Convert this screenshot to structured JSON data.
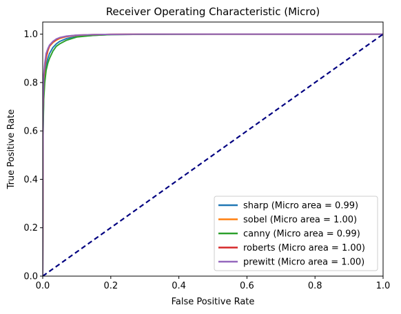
{
  "chart_data": {
    "type": "line",
    "title": "Receiver Operating Characteristic (Micro)",
    "xlabel": "False Positive Rate",
    "ylabel": "True Positive Rate",
    "xlim": [
      0.0,
      1.0
    ],
    "ylim": [
      0.0,
      1.05
    ],
    "xticks": [
      "0.0",
      "0.2",
      "0.4",
      "0.6",
      "0.8",
      "1.0"
    ],
    "yticks": [
      "0.0",
      "0.2",
      "0.4",
      "0.6",
      "0.8",
      "1.0"
    ],
    "grid": false,
    "legend_position": "lower-right",
    "series": [
      {
        "name": "sharp (Micro area = 0.99)",
        "color": "#1f77b4",
        "x": [
          0,
          0.001,
          0.003,
          0.006,
          0.01,
          0.015,
          0.02,
          0.03,
          0.04,
          0.05,
          0.07,
          0.1,
          0.15,
          0.2,
          0.3,
          0.5,
          1.0
        ],
        "y": [
          0,
          0.6,
          0.75,
          0.82,
          0.87,
          0.9,
          0.92,
          0.945,
          0.96,
          0.97,
          0.982,
          0.99,
          0.995,
          0.998,
          0.999,
          1.0,
          1.0
        ]
      },
      {
        "name": "sobel (Micro area = 1.00)",
        "color": "#ff7f0e",
        "x": [
          0,
          0.001,
          0.003,
          0.006,
          0.01,
          0.015,
          0.02,
          0.03,
          0.04,
          0.05,
          0.07,
          0.1,
          0.15,
          0.2,
          0.3,
          0.5,
          1.0
        ],
        "y": [
          0,
          0.66,
          0.8,
          0.86,
          0.9,
          0.93,
          0.95,
          0.965,
          0.975,
          0.982,
          0.99,
          0.995,
          0.998,
          0.999,
          1.0,
          1.0,
          1.0
        ]
      },
      {
        "name": "canny (Micro area = 0.99)",
        "color": "#2ca02c",
        "x": [
          0,
          0.001,
          0.003,
          0.006,
          0.01,
          0.015,
          0.02,
          0.03,
          0.04,
          0.05,
          0.07,
          0.1,
          0.15,
          0.2,
          0.3,
          0.5,
          1.0
        ],
        "y": [
          0,
          0.58,
          0.73,
          0.8,
          0.85,
          0.88,
          0.9,
          0.93,
          0.95,
          0.96,
          0.975,
          0.988,
          0.995,
          0.998,
          0.999,
          1.0,
          1.0
        ]
      },
      {
        "name": "roberts (Micro area = 1.00)",
        "color": "#d62728",
        "x": [
          0,
          0.001,
          0.003,
          0.006,
          0.01,
          0.015,
          0.02,
          0.03,
          0.04,
          0.05,
          0.07,
          0.1,
          0.15,
          0.2,
          0.3,
          0.5,
          1.0
        ],
        "y": [
          0,
          0.68,
          0.82,
          0.87,
          0.91,
          0.935,
          0.952,
          0.968,
          0.978,
          0.985,
          0.991,
          0.996,
          0.998,
          0.999,
          1.0,
          1.0,
          1.0
        ]
      },
      {
        "name": "prewitt (Micro area = 1.00)",
        "color": "#9467bd",
        "x": [
          0,
          0.001,
          0.003,
          0.006,
          0.01,
          0.015,
          0.02,
          0.03,
          0.04,
          0.05,
          0.07,
          0.1,
          0.15,
          0.2,
          0.3,
          0.5,
          1.0
        ],
        "y": [
          0,
          0.7,
          0.83,
          0.88,
          0.92,
          0.94,
          0.955,
          0.97,
          0.98,
          0.986,
          0.992,
          0.996,
          0.998,
          0.999,
          1.0,
          1.0,
          1.0
        ]
      }
    ],
    "reference_line": {
      "color": "#000080",
      "style": "dashed",
      "x": [
        0,
        1
      ],
      "y": [
        0,
        1
      ]
    }
  }
}
